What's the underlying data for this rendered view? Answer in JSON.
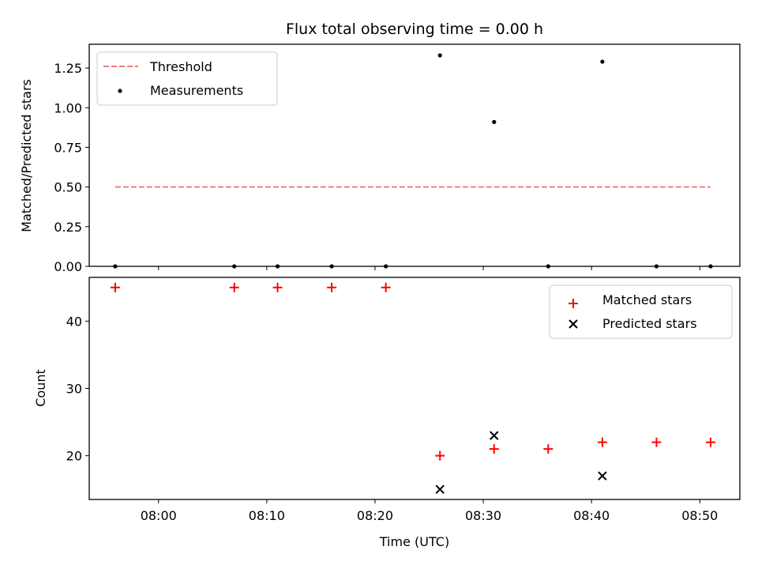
{
  "chart_data": [
    {
      "type": "scatter",
      "title": "Flux total observing time = 0.00 h",
      "xlabel": "",
      "ylabel": "Matched/Predicted stars",
      "ylim": [
        0,
        1.4
      ],
      "yticks": [
        "0.00",
        "0.25",
        "0.50",
        "0.75",
        "1.00",
        "1.25"
      ],
      "ytick_values": [
        0,
        0.25,
        0.5,
        0.75,
        1.0,
        1.25
      ],
      "legend_position": "top-left",
      "threshold": {
        "name": "Threshold",
        "value": 0.5,
        "x_start": "07:56",
        "x_end": "08:51",
        "color": "#f08080"
      },
      "series": [
        {
          "name": "Measurements",
          "color": "#000000",
          "points": [
            {
              "x": "07:56",
              "y": 0
            },
            {
              "x": "08:07",
              "y": 0
            },
            {
              "x": "08:11",
              "y": 0
            },
            {
              "x": "08:16",
              "y": 0
            },
            {
              "x": "08:21",
              "y": 0
            },
            {
              "x": "08:26",
              "y": 1.33
            },
            {
              "x": "08:31",
              "y": 0.91
            },
            {
              "x": "08:36",
              "y": 0
            },
            {
              "x": "08:41",
              "y": 1.29
            },
            {
              "x": "08:46",
              "y": 0
            },
            {
              "x": "08:51",
              "y": 0
            }
          ]
        }
      ]
    },
    {
      "type": "scatter",
      "title": "",
      "xlabel": "Time (UTC)",
      "ylabel": "Count",
      "xlim": [
        "07:53",
        "08:54"
      ],
      "xticks": [
        "08:00",
        "08:10",
        "08:20",
        "08:30",
        "08:40",
        "08:50"
      ],
      "ylim": [
        13.5,
        46.5
      ],
      "yticks": [
        "20",
        "30",
        "40"
      ],
      "ytick_values": [
        20,
        30,
        40
      ],
      "legend_position": "top-right",
      "series": [
        {
          "name": "Matched stars",
          "marker": "plus",
          "color": "#ff0000",
          "points": [
            {
              "x": "07:56",
              "y": 45
            },
            {
              "x": "08:07",
              "y": 45
            },
            {
              "x": "08:11",
              "y": 45
            },
            {
              "x": "08:16",
              "y": 45
            },
            {
              "x": "08:21",
              "y": 45
            },
            {
              "x": "08:26",
              "y": 20
            },
            {
              "x": "08:31",
              "y": 21
            },
            {
              "x": "08:36",
              "y": 21
            },
            {
              "x": "08:41",
              "y": 22
            },
            {
              "x": "08:46",
              "y": 22
            },
            {
              "x": "08:51",
              "y": 22
            }
          ]
        },
        {
          "name": "Predicted stars",
          "marker": "x",
          "color": "#000000",
          "points": [
            {
              "x": "08:26",
              "y": 15
            },
            {
              "x": "08:31",
              "y": 23
            },
            {
              "x": "08:41",
              "y": 17
            }
          ]
        }
      ]
    }
  ]
}
